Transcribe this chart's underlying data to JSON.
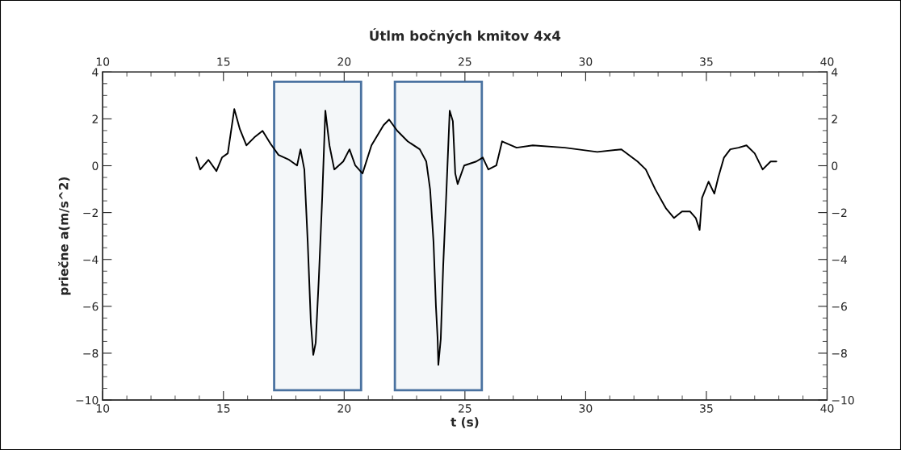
{
  "chart_data": {
    "type": "line",
    "title": "Útlm bočných kmitov 4x4",
    "xlabel": "t (s)",
    "ylabel": "priečne a(m/s^2)",
    "xlim": [
      10,
      40
    ],
    "xticks": [
      10,
      15,
      20,
      25,
      30,
      35,
      40
    ],
    "x2lim": [
      10,
      40
    ],
    "x2ticks": [
      10,
      15,
      20,
      25,
      30,
      35,
      40
    ],
    "ylim": [
      -10,
      4
    ],
    "yticks": [
      -10,
      -8,
      -6,
      -4,
      -2,
      0,
      2,
      4
    ],
    "y2lim": [
      -10,
      4
    ],
    "y2ticks": [
      -10,
      -8,
      -6,
      -4,
      -2,
      0,
      2,
      4
    ],
    "grid": false,
    "legend": false,
    "marker": "none",
    "line_style": "solid",
    "bands": [
      {
        "axis": "x",
        "from": 17.1,
        "to": 20.7,
        "color": "#4a72a0"
      },
      {
        "axis": "x",
        "from": 22.1,
        "to": 25.7,
        "color": "#4a72a0"
      }
    ],
    "series": [
      {
        "color": "#000000",
        "x": [
          13.88,
          14.04,
          14.38,
          14.71,
          14.94,
          15.18,
          15.45,
          15.68,
          15.95,
          16.28,
          16.62,
          16.95,
          17.28,
          17.72,
          18.05,
          18.19,
          18.35,
          18.49,
          18.62,
          18.72,
          18.82,
          18.95,
          19.09,
          19.22,
          19.39,
          19.59,
          19.96,
          20.22,
          20.46,
          20.76,
          21.13,
          21.63,
          21.86,
          22.2,
          22.63,
          23.13,
          23.4,
          23.56,
          23.7,
          23.8,
          23.87,
          23.9,
          24.0,
          24.1,
          24.23,
          24.37,
          24.5,
          24.6,
          24.7,
          24.97,
          25.47,
          25.74,
          25.97,
          26.3,
          26.54,
          27.14,
          27.81,
          29.14,
          30.48,
          31.48,
          32.15,
          32.49,
          32.89,
          33.32,
          33.66,
          33.99,
          34.32,
          34.56,
          34.72,
          34.82,
          35.09,
          35.33,
          35.49,
          35.73,
          35.99,
          36.33,
          36.66,
          37.0,
          37.33,
          37.66,
          37.9
        ],
        "values": [
          0.35,
          -0.16,
          0.25,
          -0.23,
          0.35,
          0.53,
          2.42,
          1.56,
          0.87,
          1.21,
          1.49,
          0.94,
          0.46,
          0.25,
          0.01,
          0.7,
          -0.16,
          -3.26,
          -6.7,
          -8.07,
          -7.56,
          -4.81,
          -1.37,
          2.35,
          0.87,
          -0.16,
          0.18,
          0.7,
          0.01,
          -0.33,
          0.87,
          1.73,
          1.97,
          1.49,
          1.04,
          0.7,
          0.18,
          -1.02,
          -3.26,
          -6.01,
          -7.39,
          -8.5,
          -7.39,
          -4.29,
          -1.19,
          2.35,
          1.9,
          -0.33,
          -0.78,
          0.01,
          0.18,
          0.35,
          -0.16,
          0.01,
          1.04,
          0.77,
          0.87,
          0.77,
          0.59,
          0.7,
          0.18,
          -0.16,
          -1.02,
          -1.81,
          -2.23,
          -1.95,
          -1.95,
          -2.23,
          -2.74,
          -1.37,
          -0.68,
          -1.19,
          -0.51,
          0.35,
          0.7,
          0.77,
          0.87,
          0.53,
          -0.16,
          0.18,
          0.18
        ]
      }
    ]
  }
}
